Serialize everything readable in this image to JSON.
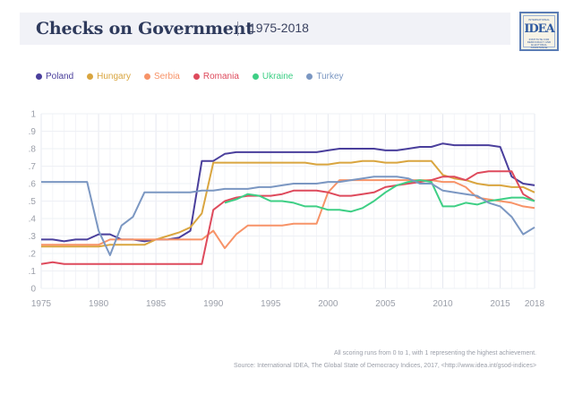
{
  "header": {
    "title": "Checks on Government",
    "subtitle": "1975-2018",
    "logo": {
      "top": "INTERNATIONAL",
      "main": "IDEA",
      "lines": [
        "INSTITUTE FOR",
        "DEMOCRACY AND",
        "ELECTORAL",
        "ASSISTANCE"
      ]
    }
  },
  "footer": {
    "note": "All scoring runs from 0 to 1, with 1 representing the highest achievement.",
    "source": "Source: International IDEA, The Global State of Democracy Indices, 2017, <http://www.idea.int/gsod-indices>"
  },
  "chart_data": {
    "type": "line",
    "title": "Checks on Government",
    "subtitle": "1975-2018",
    "xlabel": "",
    "ylabel": "",
    "xlim": [
      1975,
      2018
    ],
    "ylim": [
      0,
      1
    ],
    "grid": true,
    "legend_position": "top-left",
    "x_ticks": [
      1975,
      1980,
      1985,
      1990,
      1995,
      2000,
      2005,
      2010,
      2015,
      2018
    ],
    "y_ticks": [
      0,
      0.1,
      0.2,
      0.3,
      0.4,
      0.5,
      0.6,
      0.7,
      0.8,
      0.9,
      1
    ],
    "y_tick_labels": [
      "0",
      ".1",
      ".2",
      ".3",
      ".4",
      ".5",
      ".6",
      ".7",
      ".8",
      ".9",
      "1"
    ],
    "x": [
      1975,
      1976,
      1977,
      1978,
      1979,
      1980,
      1981,
      1982,
      1983,
      1984,
      1985,
      1986,
      1987,
      1988,
      1989,
      1990,
      1991,
      1992,
      1993,
      1994,
      1995,
      1996,
      1997,
      1998,
      1999,
      2000,
      2001,
      2002,
      2003,
      2004,
      2005,
      2006,
      2007,
      2008,
      2009,
      2010,
      2011,
      2012,
      2013,
      2014,
      2015,
      2016,
      2017,
      2018
    ],
    "series": [
      {
        "name": "Poland",
        "color": "#4a3f9c",
        "values": [
          0.28,
          0.28,
          0.27,
          0.28,
          0.28,
          0.31,
          0.31,
          0.28,
          0.28,
          0.27,
          0.28,
          0.28,
          0.29,
          0.33,
          0.73,
          0.73,
          0.77,
          0.78,
          0.78,
          0.78,
          0.78,
          0.78,
          0.78,
          0.78,
          0.78,
          0.79,
          0.8,
          0.8,
          0.8,
          0.8,
          0.79,
          0.79,
          0.8,
          0.81,
          0.81,
          0.83,
          0.82,
          0.82,
          0.82,
          0.82,
          0.81,
          0.64,
          0.6,
          0.59
        ]
      },
      {
        "name": "Hungary",
        "color": "#d9a53f",
        "values": [
          0.24,
          0.24,
          0.24,
          0.24,
          0.24,
          0.24,
          0.25,
          0.25,
          0.25,
          0.25,
          0.28,
          0.3,
          0.32,
          0.35,
          0.43,
          0.72,
          0.72,
          0.72,
          0.72,
          0.72,
          0.72,
          0.72,
          0.72,
          0.72,
          0.71,
          0.71,
          0.72,
          0.72,
          0.73,
          0.73,
          0.72,
          0.72,
          0.73,
          0.73,
          0.73,
          0.65,
          0.63,
          0.62,
          0.6,
          0.59,
          0.59,
          0.58,
          0.58,
          0.55
        ]
      },
      {
        "name": "Serbia",
        "color": "#f79368",
        "values": [
          0.25,
          0.25,
          0.25,
          0.25,
          0.25,
          0.25,
          0.28,
          0.28,
          0.28,
          0.28,
          0.28,
          0.28,
          0.28,
          0.28,
          0.28,
          0.33,
          0.23,
          0.31,
          0.36,
          0.36,
          0.36,
          0.36,
          0.37,
          0.37,
          0.37,
          0.55,
          0.62,
          0.62,
          0.62,
          0.62,
          0.62,
          0.62,
          0.62,
          0.62,
          0.62,
          0.61,
          0.61,
          0.58,
          0.52,
          0.51,
          0.5,
          0.49,
          0.47,
          0.46
        ]
      },
      {
        "name": "Romania",
        "color": "#de4a5c",
        "values": [
          0.14,
          0.15,
          0.14,
          0.14,
          0.14,
          0.14,
          0.14,
          0.14,
          0.14,
          0.14,
          0.14,
          0.14,
          0.14,
          0.14,
          0.14,
          0.45,
          0.5,
          0.52,
          0.53,
          0.53,
          0.53,
          0.54,
          0.56,
          0.56,
          0.56,
          0.55,
          0.53,
          0.53,
          0.54,
          0.55,
          0.58,
          0.59,
          0.6,
          0.61,
          0.62,
          0.64,
          0.64,
          0.62,
          0.66,
          0.67,
          0.67,
          0.67,
          0.54,
          0.5
        ]
      },
      {
        "name": "Ukraine",
        "color": "#3ecf85",
        "values": [
          null,
          null,
          null,
          null,
          null,
          null,
          null,
          null,
          null,
          null,
          null,
          null,
          null,
          null,
          null,
          null,
          0.49,
          0.51,
          0.54,
          0.53,
          0.5,
          0.5,
          0.49,
          0.47,
          0.47,
          0.45,
          0.45,
          0.44,
          0.46,
          0.5,
          0.55,
          0.59,
          0.61,
          0.62,
          0.61,
          0.47,
          0.47,
          0.49,
          0.48,
          0.5,
          0.51,
          0.52,
          0.52,
          0.5
        ]
      },
      {
        "name": "Turkey",
        "color": "#7b97c2",
        "values": [
          0.61,
          0.61,
          0.61,
          0.61,
          0.61,
          0.33,
          0.19,
          0.36,
          0.41,
          0.55,
          0.55,
          0.55,
          0.55,
          0.55,
          0.56,
          0.56,
          0.57,
          0.57,
          0.57,
          0.58,
          0.58,
          0.59,
          0.6,
          0.6,
          0.6,
          0.61,
          0.61,
          0.62,
          0.63,
          0.64,
          0.64,
          0.64,
          0.63,
          0.6,
          0.6,
          0.56,
          0.55,
          0.54,
          0.53,
          0.49,
          0.47,
          0.41,
          0.31,
          0.35
        ]
      }
    ]
  }
}
